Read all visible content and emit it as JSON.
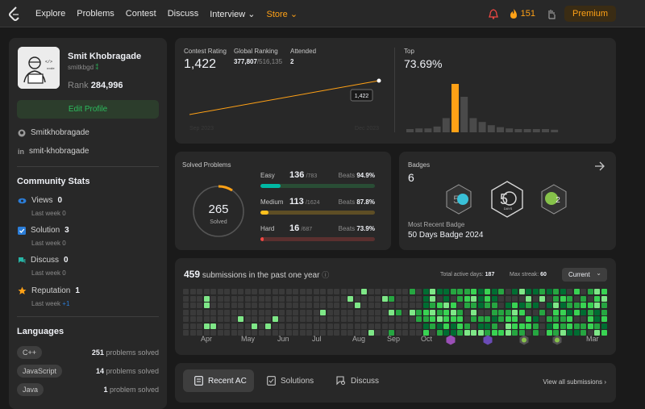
{
  "nav": {
    "links": [
      "Explore",
      "Problems",
      "Contest",
      "Discuss",
      "Interview ⌄",
      "Store ⌄"
    ],
    "streak": "151",
    "premium": "Premium"
  },
  "profile": {
    "name": "Smit Khobragade",
    "username": "smitkbgd",
    "rank_label": "Rank",
    "rank": "284,996",
    "edit": "Edit Profile",
    "github": "Smitkhobragade",
    "linkedin": "smit-khobragade"
  },
  "community": {
    "title": "Community Stats",
    "items": [
      {
        "label": "Views",
        "value": "0",
        "sub": "Last week",
        "subval": "0"
      },
      {
        "label": "Solution",
        "value": "3",
        "sub": "Last week",
        "subval": "0"
      },
      {
        "label": "Discuss",
        "value": "0",
        "sub": "Last week",
        "subval": "0"
      },
      {
        "label": "Reputation",
        "value": "1",
        "sub": "Last week",
        "subval": "+1"
      }
    ]
  },
  "languages": {
    "title": "Languages",
    "items": [
      {
        "name": "C++",
        "count": "251",
        "suffix": "problems solved"
      },
      {
        "name": "JavaScript",
        "count": "14",
        "suffix": "problems solved"
      },
      {
        "name": "Java",
        "count": "1",
        "suffix": "problem solved"
      }
    ]
  },
  "contest": {
    "rating_label": "Contest Rating",
    "rating": "1,422",
    "global_label": "Global Ranking",
    "global": "377,807",
    "global_total": "/516,135",
    "attended_label": "Attended",
    "attended": "2",
    "tooltip": "1,422",
    "x_start": "Sep 2023",
    "x_end": "Dec 2023",
    "top_label": "Top",
    "top": "73.69%"
  },
  "chart_data": [
    {
      "type": "line",
      "x": [
        "Sep 2023",
        "Dec 2023"
      ],
      "y": [
        1350,
        1422
      ]
    },
    {
      "type": "bar",
      "highlight_index": 5,
      "values": [
        5,
        6,
        6,
        9,
        22,
        75,
        55,
        22,
        16,
        11,
        8,
        6,
        5,
        5,
        5,
        5,
        4
      ]
    }
  ],
  "solved": {
    "title": "Solved Problems",
    "total": "265",
    "total_label": "Solved",
    "rows": [
      {
        "label": "Easy",
        "solved": "136",
        "total": "/783",
        "beats_label": "Beats",
        "beats": "94.9%",
        "fraction": 0.174,
        "color": "#00b8a3",
        "track": "#294d35"
      },
      {
        "label": "Medium",
        "solved": "113",
        "total": "/1624",
        "beats_label": "Beats",
        "beats": "87.8%",
        "fraction": 0.07,
        "color": "#ffc01e",
        "track": "#5e4e25"
      },
      {
        "label": "Hard",
        "solved": "16",
        "total": "/687",
        "beats_label": "Beats",
        "beats": "73.9%",
        "fraction": 0.023,
        "color": "#ef4743",
        "track": "#5a302f"
      }
    ]
  },
  "badges": {
    "title": "Badges",
    "count": "6",
    "recent_label": "Most Recent Badge",
    "recent": "50 Days Badge 2024",
    "icons": [
      "50-days-badge-icon",
      "50-days-badge-2024-icon",
      "2-problems-badge-icon"
    ]
  },
  "submissions": {
    "count": "459",
    "text": "submissions in the past one year",
    "active_label": "Total active days:",
    "active": "187",
    "streak_label": "Max streak:",
    "streak": "60",
    "select": "Current",
    "months": [
      "Apr",
      "May",
      "Jun",
      "Jul",
      "Aug",
      "Sep",
      "Oct",
      "",
      "",
      "",
      "",
      "Mar"
    ]
  },
  "tabs": {
    "items": [
      "Recent AC",
      "Solutions",
      "Discuss"
    ],
    "view_all": "View all submissions"
  }
}
